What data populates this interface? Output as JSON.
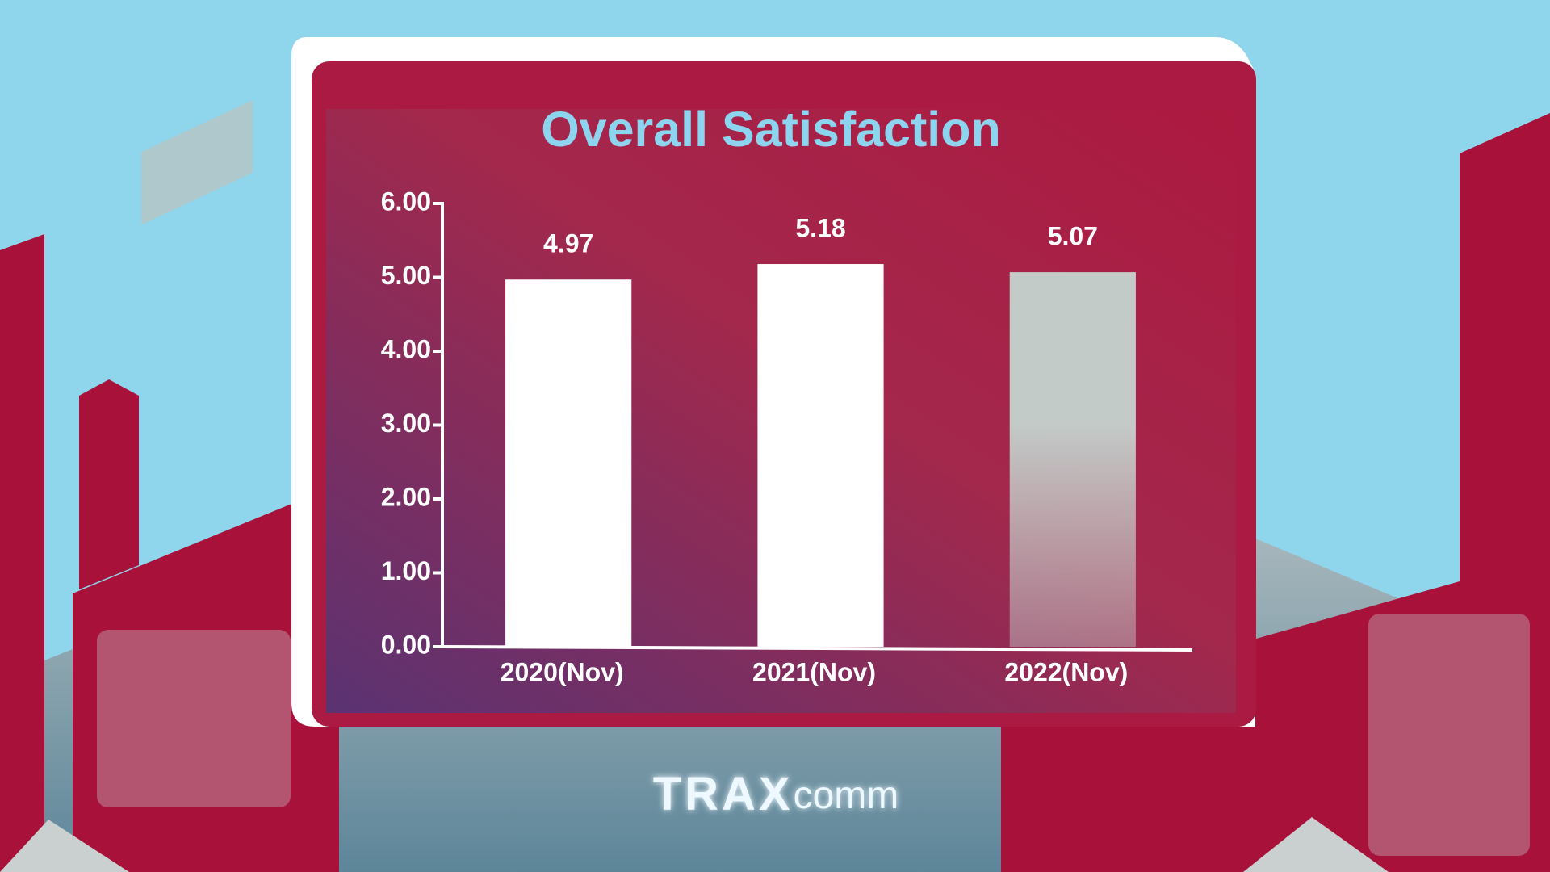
{
  "chart_data": {
    "type": "bar",
    "title": "Overall Satisfaction",
    "categories": [
      "2020(Nov)",
      "2021(Nov)",
      "2022(Nov)"
    ],
    "values": [
      4.97,
      5.18,
      5.07
    ],
    "colors": [
      "#ffffff",
      "#ffffff",
      "#c3cbc8"
    ],
    "ylim": [
      0,
      6
    ],
    "yticks": [
      {
        "value": 0,
        "label": "0.00"
      },
      {
        "value": 1,
        "label": "1.00"
      },
      {
        "value": 2,
        "label": "2.00"
      },
      {
        "value": 3,
        "label": "3.00"
      },
      {
        "value": 4,
        "label": "4.00"
      },
      {
        "value": 5,
        "label": "5.00"
      },
      {
        "value": 6,
        "label": "6.00"
      }
    ],
    "grid": false
  },
  "logo": {
    "main": "TRAX",
    "sub": "comm"
  }
}
